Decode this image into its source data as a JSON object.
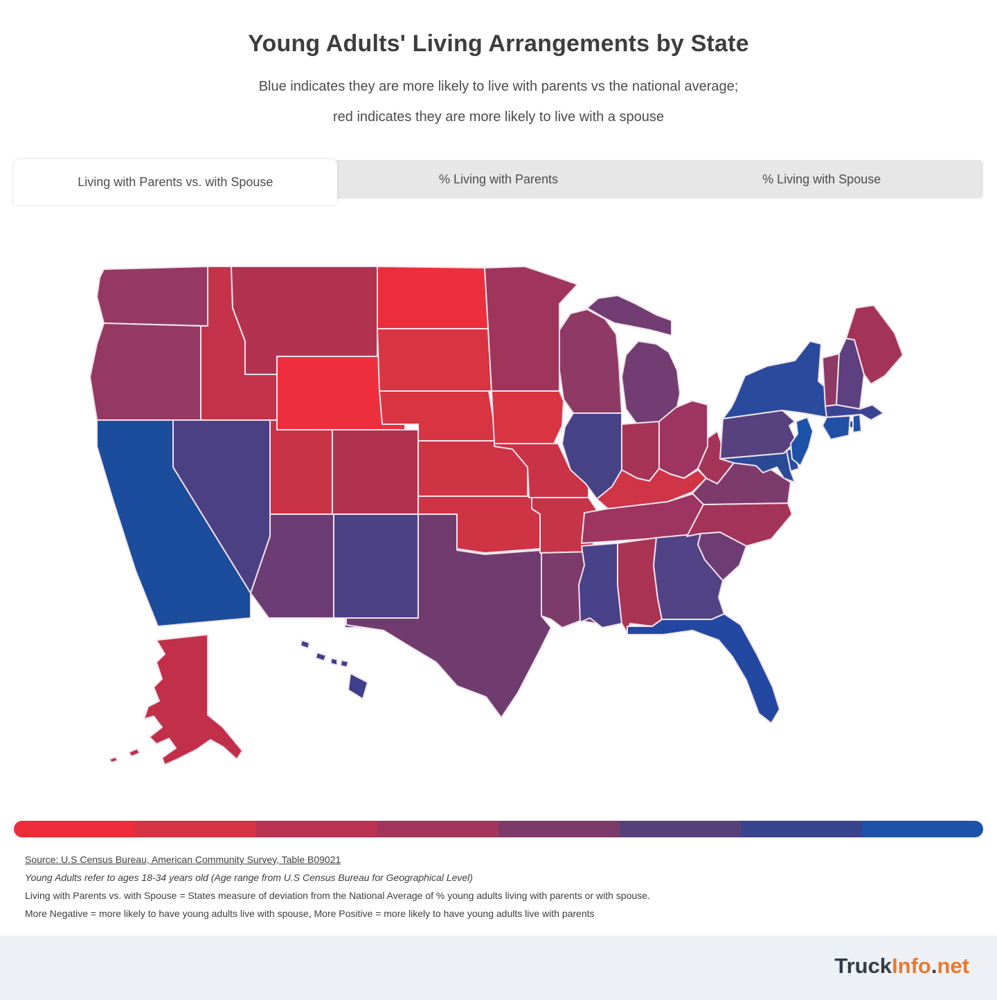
{
  "header": {
    "title": "Young Adults' Living Arrangements by State",
    "subtitle_line1": "Blue indicates they are more likely to live with parents vs the national average;",
    "subtitle_line2": "red indicates they are more likely to live with a spouse"
  },
  "tabs": [
    {
      "label": "Living with Parents vs. with Spouse",
      "active": true
    },
    {
      "label": "% Living with Parents",
      "active": false
    },
    {
      "label": "% Living with Spouse",
      "active": false
    }
  ],
  "legend": {
    "gradient_colors": [
      "#ee2d3a",
      "#d53243",
      "#b93250",
      "#a3345c",
      "#7c3a6b",
      "#564079",
      "#37438c",
      "#1d52a8"
    ]
  },
  "footer": {
    "source_line": "Source: U.S Census Bureau, American Community Survey, Table B09021",
    "age_note": "Young Adults refer to ages 18-34 years old (Age range from U.S Census Bureau for Geographical Level)",
    "definition_line": "Living with Parents vs. with Spouse = States measure of deviation from the National Average of % young adults living with parents or with spouse.",
    "polarity_line": "More Negative = more likely to have young adults live with spouse, More Positive = more likely to have young adults live with parents"
  },
  "branding": {
    "parts": [
      {
        "text": "Truck",
        "color": "#343b46"
      },
      {
        "text": "Info",
        "color": "#e87a2f"
      },
      {
        "text": ".",
        "color": "#343b46"
      },
      {
        "text": "net",
        "color": "#e87a2f"
      }
    ]
  },
  "chart_data": {
    "type": "heatmap",
    "subtype": "us-state-choropleth",
    "title": "Young Adults' Living Arrangements by State",
    "color_encoding": "Deviation from national average: red = young adults more likely to live with a spouse, blue = more likely to live with parents",
    "legend_scale": [
      "#ee2d3a",
      "#d53243",
      "#b93250",
      "#a3345c",
      "#7c3a6b",
      "#564079",
      "#37438c",
      "#1d52a8"
    ],
    "states": [
      {
        "abbr": "WA",
        "name": "Washington",
        "color": "#953963"
      },
      {
        "abbr": "OR",
        "name": "Oregon",
        "color": "#953963"
      },
      {
        "abbr": "CA",
        "name": "California",
        "color": "#1c4c9c"
      },
      {
        "abbr": "ID",
        "name": "Idaho",
        "color": "#c43349"
      },
      {
        "abbr": "NV",
        "name": "Nevada",
        "color": "#4c4084"
      },
      {
        "abbr": "MT",
        "name": "Montana",
        "color": "#b23350"
      },
      {
        "abbr": "WY",
        "name": "Wyoming",
        "color": "#ed2e3c"
      },
      {
        "abbr": "UT",
        "name": "Utah",
        "color": "#ca3347"
      },
      {
        "abbr": "CO",
        "name": "Colorado",
        "color": "#b23350"
      },
      {
        "abbr": "AZ",
        "name": "Arizona",
        "color": "#6c3d75"
      },
      {
        "abbr": "NM",
        "name": "New Mexico",
        "color": "#4c4185"
      },
      {
        "abbr": "ND",
        "name": "North Dakota",
        "color": "#ed2e3c"
      },
      {
        "abbr": "SD",
        "name": "South Dakota",
        "color": "#d93442"
      },
      {
        "abbr": "NE",
        "name": "Nebraska",
        "color": "#d93442"
      },
      {
        "abbr": "KS",
        "name": "Kansas",
        "color": "#cf3445"
      },
      {
        "abbr": "OK",
        "name": "Oklahoma",
        "color": "#cf3445"
      },
      {
        "abbr": "TX",
        "name": "Texas",
        "color": "#703c70"
      },
      {
        "abbr": "MN",
        "name": "Minnesota",
        "color": "#a0355c"
      },
      {
        "abbr": "IA",
        "name": "Iowa",
        "color": "#d93442"
      },
      {
        "abbr": "MO",
        "name": "Missouri",
        "color": "#ca3347"
      },
      {
        "abbr": "AR",
        "name": "Arkansas",
        "color": "#c53547"
      },
      {
        "abbr": "LA",
        "name": "Louisiana",
        "color": "#7c3b6b"
      },
      {
        "abbr": "WI",
        "name": "Wisconsin",
        "color": "#8e3a64"
      },
      {
        "abbr": "IL",
        "name": "Illinois",
        "color": "#474286"
      },
      {
        "abbr": "MI",
        "name": "Michigan",
        "color": "#713d72"
      },
      {
        "abbr": "IN",
        "name": "Indiana",
        "color": "#a73456"
      },
      {
        "abbr": "OH",
        "name": "Ohio",
        "color": "#9d3560"
      },
      {
        "abbr": "KY",
        "name": "Kentucky",
        "color": "#cf3447"
      },
      {
        "abbr": "TN",
        "name": "Tennessee",
        "color": "#9d3560"
      },
      {
        "abbr": "MS",
        "name": "Mississippi",
        "color": "#4a4288"
      },
      {
        "abbr": "AL",
        "name": "Alabama",
        "color": "#a93454"
      },
      {
        "abbr": "GA",
        "name": "Georgia",
        "color": "#524286"
      },
      {
        "abbr": "FL",
        "name": "Florida",
        "color": "#2348a2"
      },
      {
        "abbr": "SC",
        "name": "South Carolina",
        "color": "#6e3d73"
      },
      {
        "abbr": "NC",
        "name": "North Carolina",
        "color": "#a43359"
      },
      {
        "abbr": "VA",
        "name": "Virginia",
        "color": "#7c3b6b"
      },
      {
        "abbr": "WV",
        "name": "West Virginia",
        "color": "#a43358"
      },
      {
        "abbr": "PA",
        "name": "Pennsylvania",
        "color": "#57417e"
      },
      {
        "abbr": "NY",
        "name": "New York",
        "color": "#2a4b9d"
      },
      {
        "abbr": "MD",
        "name": "Maryland",
        "color": "#2b4a96"
      },
      {
        "abbr": "DE",
        "name": "Delaware",
        "color": "#2b4c9e"
      },
      {
        "abbr": "NJ",
        "name": "New Jersey",
        "color": "#1c52a8"
      },
      {
        "abbr": "VT",
        "name": "Vermont",
        "color": "#8d3a66"
      },
      {
        "abbr": "NH",
        "name": "New Hampshire",
        "color": "#5e4080"
      },
      {
        "abbr": "ME",
        "name": "Maine",
        "color": "#a43359"
      },
      {
        "abbr": "MA",
        "name": "Massachusetts",
        "color": "#3a4492"
      },
      {
        "abbr": "CT",
        "name": "Connecticut",
        "color": "#2150a6"
      },
      {
        "abbr": "RI",
        "name": "Rhode Island",
        "color": "#2150a6"
      },
      {
        "abbr": "AK",
        "name": "Alaska",
        "color": "#c13048"
      },
      {
        "abbr": "HI",
        "name": "Hawaii",
        "color": "#3f3f8b"
      }
    ]
  }
}
